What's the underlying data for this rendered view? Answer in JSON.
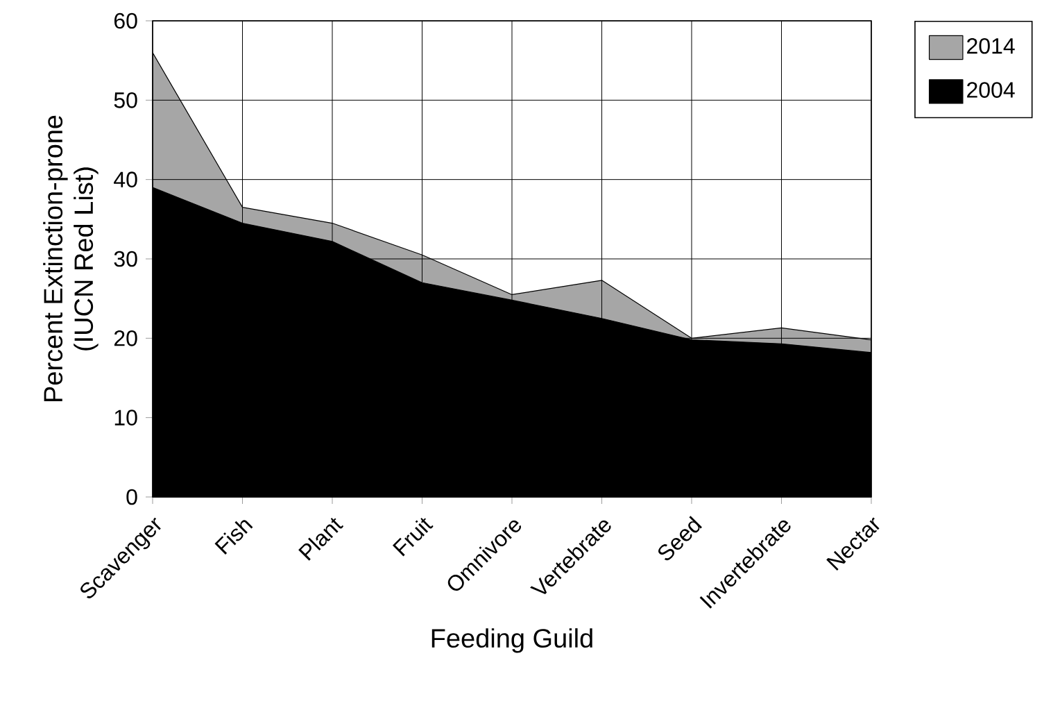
{
  "chart_data": {
    "type": "area",
    "xlabel": "Feeding Guild",
    "ylabel": "Percent Extinction-prone\n(IUCN Red List)",
    "categories": [
      "Scavenger",
      "Fish",
      "Plant",
      "Fruit",
      "Omnivore",
      "Vertebrate",
      "Seed",
      "Invertebrate",
      "Nectar"
    ],
    "series": [
      {
        "name": "2014",
        "color": "#a6a6a6",
        "values": [
          56,
          36.5,
          34.5,
          30.5,
          25.5,
          27.3,
          20,
          21.3,
          19.8
        ]
      },
      {
        "name": "2004",
        "color": "#000000",
        "values": [
          39,
          34.5,
          32.2,
          27,
          24.8,
          22.5,
          19.8,
          19.3,
          18.2
        ]
      }
    ],
    "ylim": [
      0,
      60
    ],
    "yticks": [
      0,
      10,
      20,
      30,
      40,
      50,
      60
    ],
    "grid": true,
    "legend": "top right"
  }
}
